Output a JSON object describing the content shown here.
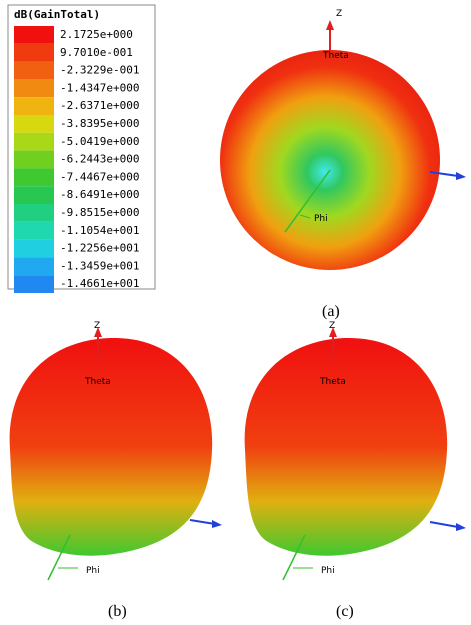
{
  "legend": {
    "title": "dB(GainTotal)",
    "labels": [
      "2.1725e+000",
      "9.7010e-001",
      "-2.3229e-001",
      "-1.4347e+000",
      "-2.6371e+000",
      "-3.8395e+000",
      "-5.0419e+000",
      "-6.2443e+000",
      "-7.4467e+000",
      "-8.6491e+000",
      "-9.8515e+000",
      "-1.1054e+001",
      "-1.2256e+001",
      "-1.3459e+001",
      "-1.4661e+001"
    ],
    "colors": [
      "#f01010",
      "#f03a10",
      "#f06010",
      "#f08a10",
      "#f0b410",
      "#d8d810",
      "#a8d818",
      "#70d020",
      "#40c830",
      "#28c850",
      "#20d080",
      "#20d8b0",
      "#20d0e0",
      "#20a8f0",
      "#2088f0"
    ]
  },
  "panels": [
    {
      "caption": "(a)",
      "z": "Z",
      "theta": "Theta",
      "phi": "Phi"
    },
    {
      "caption": "(b)",
      "z": "Z",
      "theta": "Theta",
      "phi": "Phi"
    },
    {
      "caption": "(c)",
      "z": "Z",
      "theta": "Theta",
      "phi": "Phi"
    }
  ]
}
